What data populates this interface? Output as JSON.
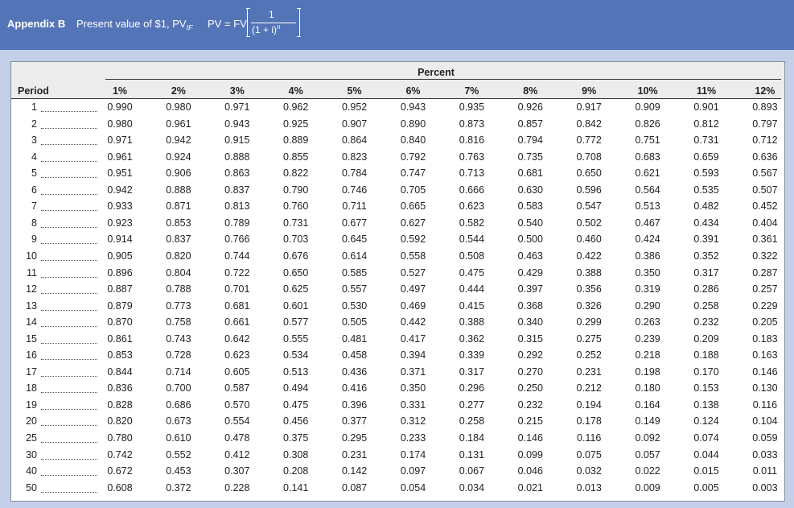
{
  "header": {
    "label": "Appendix B",
    "title": "Present value of $1, PV",
    "title_subscript": "IF",
    "formula": {
      "lhs": "PV = FV",
      "numerator": "1",
      "denominator": "(1 + i)",
      "exponent": "n"
    }
  },
  "table": {
    "group_header": "Percent",
    "row_header": "Period",
    "columns": [
      "1%",
      "2%",
      "3%",
      "4%",
      "5%",
      "6%",
      "7%",
      "8%",
      "9%",
      "10%",
      "11%",
      "12%"
    ],
    "periods": [
      "1",
      "2",
      "3",
      "4",
      "5",
      "6",
      "7",
      "8",
      "9",
      "10",
      "11",
      "12",
      "13",
      "14",
      "15",
      "16",
      "17",
      "18",
      "19",
      "20",
      "25",
      "30",
      "40",
      "50"
    ],
    "rows": [
      [
        "0.990",
        "0.980",
        "0.971",
        "0.962",
        "0.952",
        "0.943",
        "0.935",
        "0.926",
        "0.917",
        "0.909",
        "0.901",
        "0.893"
      ],
      [
        "0.980",
        "0.961",
        "0.943",
        "0.925",
        "0.907",
        "0.890",
        "0.873",
        "0.857",
        "0.842",
        "0.826",
        "0.812",
        "0.797"
      ],
      [
        "0.971",
        "0.942",
        "0.915",
        "0.889",
        "0.864",
        "0.840",
        "0.816",
        "0.794",
        "0.772",
        "0.751",
        "0.731",
        "0.712"
      ],
      [
        "0.961",
        "0.924",
        "0.888",
        "0.855",
        "0.823",
        "0.792",
        "0.763",
        "0.735",
        "0.708",
        "0.683",
        "0.659",
        "0.636"
      ],
      [
        "0.951",
        "0.906",
        "0.863",
        "0.822",
        "0.784",
        "0.747",
        "0.713",
        "0.681",
        "0.650",
        "0.621",
        "0.593",
        "0.567"
      ],
      [
        "0.942",
        "0.888",
        "0.837",
        "0.790",
        "0.746",
        "0.705",
        "0.666",
        "0.630",
        "0.596",
        "0.564",
        "0.535",
        "0.507"
      ],
      [
        "0.933",
        "0.871",
        "0.813",
        "0.760",
        "0.711",
        "0.665",
        "0.623",
        "0.583",
        "0.547",
        "0.513",
        "0.482",
        "0.452"
      ],
      [
        "0.923",
        "0.853",
        "0.789",
        "0.731",
        "0.677",
        "0.627",
        "0.582",
        "0.540",
        "0.502",
        "0.467",
        "0.434",
        "0.404"
      ],
      [
        "0.914",
        "0.837",
        "0.766",
        "0.703",
        "0.645",
        "0.592",
        "0.544",
        "0.500",
        "0.460",
        "0.424",
        "0.391",
        "0.361"
      ],
      [
        "0.905",
        "0.820",
        "0.744",
        "0.676",
        "0.614",
        "0.558",
        "0.508",
        "0.463",
        "0.422",
        "0.386",
        "0.352",
        "0.322"
      ],
      [
        "0.896",
        "0.804",
        "0.722",
        "0.650",
        "0.585",
        "0.527",
        "0.475",
        "0.429",
        "0.388",
        "0.350",
        "0.317",
        "0.287"
      ],
      [
        "0.887",
        "0.788",
        "0.701",
        "0.625",
        "0.557",
        "0.497",
        "0.444",
        "0.397",
        "0.356",
        "0.319",
        "0.286",
        "0.257"
      ],
      [
        "0.879",
        "0.773",
        "0.681",
        "0.601",
        "0.530",
        "0.469",
        "0.415",
        "0.368",
        "0.326",
        "0.290",
        "0.258",
        "0.229"
      ],
      [
        "0.870",
        "0.758",
        "0.661",
        "0.577",
        "0.505",
        "0.442",
        "0.388",
        "0.340",
        "0.299",
        "0.263",
        "0.232",
        "0.205"
      ],
      [
        "0.861",
        "0.743",
        "0.642",
        "0.555",
        "0.481",
        "0.417",
        "0.362",
        "0.315",
        "0.275",
        "0.239",
        "0.209",
        "0.183"
      ],
      [
        "0.853",
        "0.728",
        "0.623",
        "0.534",
        "0.458",
        "0.394",
        "0.339",
        "0.292",
        "0.252",
        "0.218",
        "0.188",
        "0.163"
      ],
      [
        "0.844",
        "0.714",
        "0.605",
        "0.513",
        "0.436",
        "0.371",
        "0.317",
        "0.270",
        "0.231",
        "0.198",
        "0.170",
        "0.146"
      ],
      [
        "0.836",
        "0.700",
        "0.587",
        "0.494",
        "0.416",
        "0.350",
        "0.296",
        "0.250",
        "0.212",
        "0.180",
        "0.153",
        "0.130"
      ],
      [
        "0.828",
        "0.686",
        "0.570",
        "0.475",
        "0.396",
        "0.331",
        "0.277",
        "0.232",
        "0.194",
        "0.164",
        "0.138",
        "0.116"
      ],
      [
        "0.820",
        "0.673",
        "0.554",
        "0.456",
        "0.377",
        "0.312",
        "0.258",
        "0.215",
        "0.178",
        "0.149",
        "0.124",
        "0.104"
      ],
      [
        "0.780",
        "0.610",
        "0.478",
        "0.375",
        "0.295",
        "0.233",
        "0.184",
        "0.146",
        "0.116",
        "0.092",
        "0.074",
        "0.059"
      ],
      [
        "0.742",
        "0.552",
        "0.412",
        "0.308",
        "0.231",
        "0.174",
        "0.131",
        "0.099",
        "0.075",
        "0.057",
        "0.044",
        "0.033"
      ],
      [
        "0.672",
        "0.453",
        "0.307",
        "0.208",
        "0.142",
        "0.097",
        "0.067",
        "0.046",
        "0.032",
        "0.022",
        "0.015",
        "0.011"
      ],
      [
        "0.608",
        "0.372",
        "0.228",
        "0.141",
        "0.087",
        "0.054",
        "0.034",
        "0.021",
        "0.013",
        "0.009",
        "0.005",
        "0.003"
      ]
    ]
  }
}
